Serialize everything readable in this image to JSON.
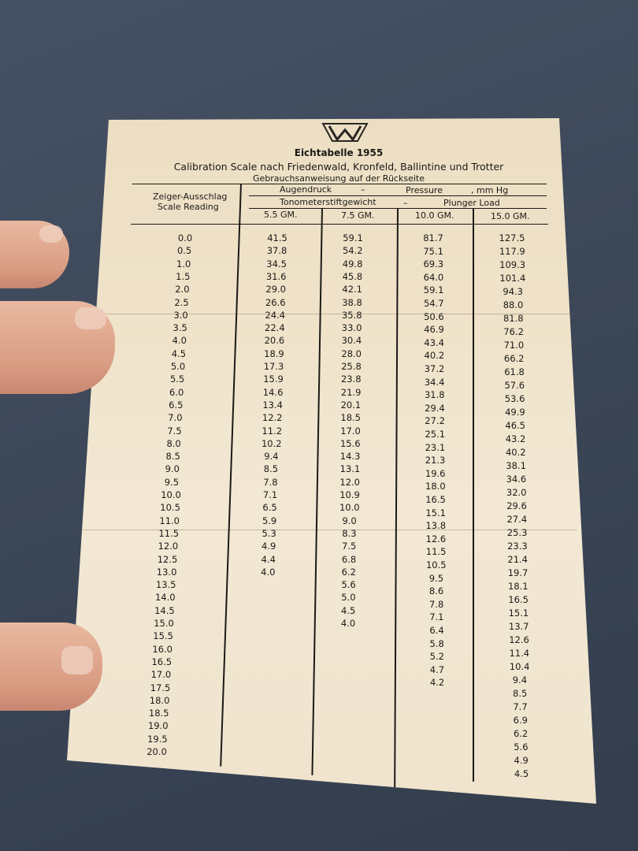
{
  "document": {
    "logo_text": "JJW",
    "title": "Eichtabelle 1955",
    "subtitle": "Calibration Scale nach Friedenwald, Kronfeld, Ballintine und Trotter",
    "note": "Gebrauchsanweisung auf der Rückseite",
    "header": {
      "scale_de": "Zeiger-Ausschlag",
      "scale_en": "Scale Reading",
      "pressure_de": "Augendruck",
      "dash1": "–",
      "pressure_en": "Pressure",
      "unit": ", mm Hg",
      "weight_de": "Tonometerstiftgewicht",
      "dash2": "–",
      "weight_en": "Plunger Load",
      "columns": [
        "5.5 GM.",
        "7.5 GM.",
        "10.0 GM.",
        "15.0 GM."
      ]
    },
    "scale_readings": [
      "0.0",
      "0.5",
      "1.0",
      "1.5",
      "2.0",
      "2.5",
      "3.0",
      "3.5",
      "4.0",
      "4.5",
      "5.0",
      "5.5",
      "6.0",
      "6.5",
      "7.0",
      "7.5",
      "8.0",
      "8.5",
      "9.0",
      "9.5",
      "10.0",
      "10.5",
      "11.0",
      "11.5",
      "12.0",
      "12.5",
      "13.0",
      "13.5",
      "14.0",
      "14.5",
      "15.0",
      "15.5",
      "16.0",
      "16.5",
      "17.0",
      "17.5",
      "18.0",
      "18.5",
      "19.0",
      "19.5",
      "20.0"
    ],
    "values": [
      [
        "41.5",
        "37.8",
        "34.5",
        "31.6",
        "29.0",
        "26.6",
        "24.4",
        "22.4",
        "20.6",
        "18.9",
        "17.3",
        "15.9",
        "14.6",
        "13.4",
        "12.2",
        "11.2",
        "10.2",
        "9.4",
        "8.5",
        "7.8",
        "7.1",
        "6.5",
        "5.9",
        "5.3",
        "4.9",
        "4.4",
        "4.0"
      ],
      [
        "59.1",
        "54.2",
        "49.8",
        "45.8",
        "42.1",
        "38.8",
        "35.8",
        "33.0",
        "30.4",
        "28.0",
        "25.8",
        "23.8",
        "21.9",
        "20.1",
        "18.5",
        "17.0",
        "15.6",
        "14.3",
        "13.1",
        "12.0",
        "10.9",
        "10.0",
        "9.0",
        "8.3",
        "7.5",
        "6.8",
        "6.2",
        "5.6",
        "5.0",
        "4.5",
        "4.0"
      ],
      [
        "81.7",
        "75.1",
        "69.3",
        "64.0",
        "59.1",
        "54.7",
        "50.6",
        "46.9",
        "43.4",
        "40.2",
        "37.2",
        "34.4",
        "31.8",
        "29.4",
        "27.2",
        "25.1",
        "23.1",
        "21.3",
        "19.6",
        "18.0",
        "16.5",
        "15.1",
        "13.8",
        "12.6",
        "11.5",
        "10.5",
        "9.5",
        "8.6",
        "7.8",
        "7.1",
        "6.4",
        "5.8",
        "5.2",
        "4.7",
        "4.2"
      ],
      [
        "127.5",
        "117.9",
        "109.3",
        "101.4",
        "94.3",
        "88.0",
        "81.8",
        "76.2",
        "71.0",
        "66.2",
        "61.8",
        "57.6",
        "53.6",
        "49.9",
        "46.5",
        "43.2",
        "40.2",
        "38.1",
        "34.6",
        "32.0",
        "29.6",
        "27.4",
        "25.3",
        "23.3",
        "21.4",
        "19.7",
        "18.1",
        "16.5",
        "15.1",
        "13.7",
        "12.6",
        "11.4",
        "10.4",
        "9.4",
        "8.5",
        "7.7",
        "6.9",
        "6.2",
        "5.6",
        "4.9",
        "4.5"
      ]
    ]
  }
}
